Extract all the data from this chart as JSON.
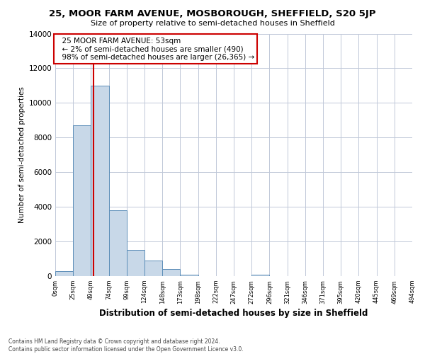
{
  "title": "25, MOOR FARM AVENUE, MOSBOROUGH, SHEFFIELD, S20 5JP",
  "subtitle": "Size of property relative to semi-detached houses in Sheffield",
  "xlabel": "Distribution of semi-detached houses by size in Sheffield",
  "ylabel": "Number of semi-detached properties",
  "property_label": "25 MOOR FARM AVENUE: 53sqm",
  "pct_smaller": 2,
  "pct_larger": 98,
  "count_smaller": 490,
  "count_larger": 26365,
  "bar_color": "#c8d8e8",
  "bar_edge_color": "#5b8db8",
  "vline_color": "#cc0000",
  "annotation_box_color": "#cc0000",
  "bin_labels": [
    "0sqm",
    "25sqm",
    "49sqm",
    "74sqm",
    "99sqm",
    "124sqm",
    "148sqm",
    "173sqm",
    "198sqm",
    "222sqm",
    "247sqm",
    "272sqm",
    "296sqm",
    "321sqm",
    "346sqm",
    "371sqm",
    "395sqm",
    "420sqm",
    "445sqm",
    "469sqm",
    "494sqm"
  ],
  "bar_heights": [
    300,
    8700,
    11000,
    3800,
    1500,
    900,
    400,
    100,
    0,
    0,
    0,
    80,
    0,
    0,
    0,
    0,
    0,
    0,
    0,
    0
  ],
  "ylim": [
    0,
    14000
  ],
  "yticks": [
    0,
    2000,
    4000,
    6000,
    8000,
    10000,
    12000,
    14000
  ],
  "vline_x": 2.16,
  "footer_line1": "Contains HM Land Registry data © Crown copyright and database right 2024.",
  "footer_line2": "Contains public sector information licensed under the Open Government Licence v3.0.",
  "background_color": "#ffffff",
  "grid_color": "#c0c8d8"
}
